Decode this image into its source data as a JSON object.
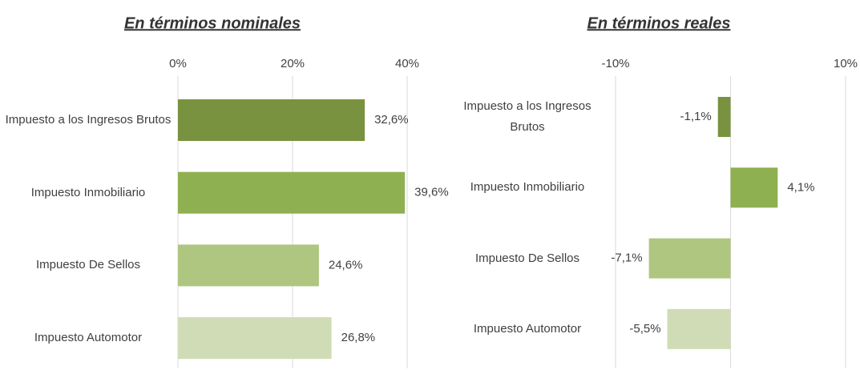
{
  "chart_data": [
    {
      "type": "bar",
      "orientation": "horizontal",
      "title": "En términos nominales",
      "categories": [
        "Impuesto a los Ingresos Brutos",
        "Impuesto Inmobiliario",
        "Impuesto De Sellos",
        "Impuesto Automotor"
      ],
      "values": [
        32.6,
        39.6,
        24.6,
        26.8
      ],
      "value_labels": [
        "32,6%",
        "39,6%",
        "24,6%",
        "26,8%"
      ],
      "colors": [
        "#78923f",
        "#8fb050",
        "#aec67f",
        "#cfdcb5"
      ],
      "xlim": [
        0,
        40
      ],
      "xticks": [
        {
          "value": 0,
          "label": "0%"
        },
        {
          "value": 20,
          "label": "20%"
        },
        {
          "value": 40,
          "label": "40%"
        }
      ],
      "grid": true
    },
    {
      "type": "bar",
      "orientation": "horizontal",
      "title": "En términos reales",
      "categories": [
        "Impuesto a los Ingresos Brutos",
        "Impuesto Inmobiliario",
        "Impuesto De Sellos",
        "Impuesto Automotor"
      ],
      "values": [
        -1.1,
        4.1,
        -7.1,
        -5.5
      ],
      "value_labels": [
        "-1,1%",
        "4,1%",
        "-7,1%",
        "-5,5%"
      ],
      "colors": [
        "#78923f",
        "#8fb050",
        "#aec67f",
        "#cfdcb5"
      ],
      "xlim": [
        -10,
        10
      ],
      "xticks": [
        {
          "value": -10,
          "label": "-10%"
        },
        {
          "value": 10,
          "label": "10%"
        }
      ],
      "grid": true
    }
  ]
}
